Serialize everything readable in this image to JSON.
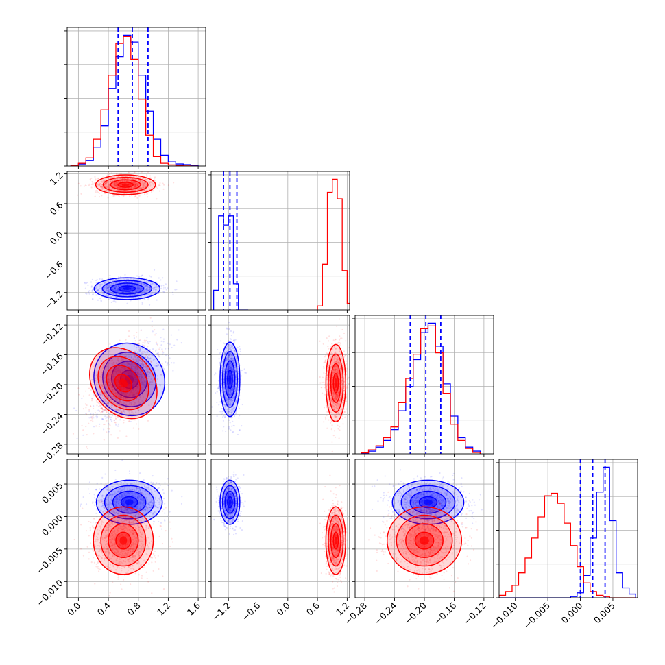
{
  "chart_data": {
    "type": "corner",
    "grid": true,
    "colors": {
      "red": "#ff0000",
      "blue": "#0000ff",
      "grid": "#b0b0b0"
    },
    "parameters": [
      {
        "lim": [
          -0.15,
          1.7
        ],
        "ticks": [
          0.0,
          0.4,
          0.8,
          1.2,
          1.6
        ],
        "tick_labels": [
          "0.0",
          "0.4",
          "0.8",
          "1.2",
          "1.6"
        ]
      },
      {
        "lim": [
          -1.55,
          1.25
        ],
        "ticks": [
          -1.2,
          -0.6,
          0.0,
          0.6,
          1.2
        ],
        "tick_labels": [
          "−1.2",
          "−0.6",
          "0.0",
          "0.6",
          "1.2"
        ]
      },
      {
        "lim": [
          -0.293,
          -0.107
        ],
        "ticks": [
          -0.28,
          -0.24,
          -0.2,
          -0.16,
          -0.12
        ],
        "tick_labels": [
          "−0.28",
          "−0.24",
          "−0.20",
          "−0.16",
          "−0.12"
        ]
      },
      {
        "lim": [
          -0.0125,
          0.0088
        ],
        "ticks": [
          -0.01,
          -0.005,
          0.0,
          0.005
        ],
        "tick_labels": [
          "−0.010",
          "−0.005",
          "0.000",
          "0.005"
        ]
      }
    ],
    "histograms": [
      {
        "param": 0,
        "blue": {
          "edges": [
            -0.1,
            0.0,
            0.1,
            0.2,
            0.3,
            0.4,
            0.5,
            0.6,
            0.7,
            0.8,
            0.9,
            1.0,
            1.1,
            1.2,
            1.3,
            1.4,
            1.5,
            1.6
          ],
          "counts": [
            0.005,
            0.015,
            0.04,
            0.14,
            0.3,
            0.58,
            0.82,
            0.98,
            0.93,
            0.68,
            0.41,
            0.2,
            0.08,
            0.03,
            0.015,
            0.01,
            0.003
          ]
        },
        "red": {
          "edges": [
            -0.1,
            0.0,
            0.1,
            0.2,
            0.3,
            0.4,
            0.5,
            0.6,
            0.7,
            0.8,
            0.9,
            1.0,
            1.1,
            1.2,
            1.3,
            1.4,
            1.5,
            1.6
          ],
          "counts": [
            0.005,
            0.02,
            0.06,
            0.2,
            0.42,
            0.68,
            0.92,
            0.97,
            0.8,
            0.5,
            0.23,
            0.07,
            0.02,
            0.008,
            0.003,
            0.001,
            0.0
          ]
        },
        "quantiles": [
          0.53,
          0.72,
          0.93
        ]
      },
      {
        "param": 1,
        "blue": {
          "edges": [
            -1.5,
            -1.4,
            -1.3,
            -1.2,
            -1.1,
            -1.0,
            -0.9,
            -0.8
          ],
          "counts": [
            0.15,
            0.72,
            0.65,
            0.72,
            0.2,
            0.0,
            0.0
          ]
        },
        "red": {
          "edges": [
            0.6,
            0.7,
            0.8,
            0.9,
            1.0,
            1.1,
            1.2,
            1.3
          ],
          "counts": [
            0.03,
            0.35,
            0.9,
            1.0,
            0.85,
            0.3,
            0.05
          ]
        },
        "quantiles": [
          -1.3,
          -1.17,
          -1.03
        ]
      },
      {
        "param": 2,
        "blue": {
          "edges": [
            -0.285,
            -0.275,
            -0.265,
            -0.255,
            -0.245,
            -0.235,
            -0.225,
            -0.215,
            -0.205,
            -0.195,
            -0.185,
            -0.175,
            -0.165,
            -0.155,
            -0.145,
            -0.135,
            -0.125
          ],
          "counts": [
            0.005,
            0.02,
            0.05,
            0.1,
            0.18,
            0.32,
            0.5,
            0.7,
            0.9,
            0.97,
            0.8,
            0.52,
            0.28,
            0.12,
            0.05,
            0.02
          ]
        },
        "red": {
          "edges": [
            -0.285,
            -0.275,
            -0.265,
            -0.255,
            -0.245,
            -0.235,
            -0.225,
            -0.215,
            -0.205,
            -0.195,
            -0.185,
            -0.175,
            -0.165,
            -0.155,
            -0.145,
            -0.135,
            -0.125
          ],
          "counts": [
            0.008,
            0.03,
            0.06,
            0.12,
            0.2,
            0.38,
            0.56,
            0.74,
            0.93,
            0.95,
            0.75,
            0.45,
            0.22,
            0.1,
            0.04,
            0.01
          ]
        },
        "quantiles": [
          -0.219,
          -0.198,
          -0.178
        ]
      },
      {
        "param": 3,
        "blue": {
          "edges": [
            -0.0125,
            -0.0115,
            -0.0105,
            -0.0095,
            -0.0085,
            -0.0075,
            -0.0065,
            -0.0055,
            -0.0045,
            -0.0035,
            -0.0025,
            -0.0015,
            -0.0005,
            0.0005,
            0.0015,
            0.0025,
            0.0035,
            0.0045,
            0.0055,
            0.0065,
            0.0075,
            0.0085
          ],
          "counts": [
            0,
            0,
            0,
            0,
            0,
            0,
            0,
            0,
            0,
            0,
            0,
            0.01,
            0.04,
            0.18,
            0.48,
            0.85,
            1.05,
            0.62,
            0.2,
            0.08,
            0.03
          ]
        },
        "red": {
          "edges": [
            -0.0125,
            -0.0115,
            -0.0105,
            -0.0095,
            -0.0085,
            -0.0075,
            -0.0065,
            -0.0055,
            -0.0045,
            -0.0035,
            -0.0025,
            -0.0015,
            -0.0005,
            0.0005,
            0.0015,
            0.0025,
            0.0035,
            0.0045,
            0.0055,
            0.0065,
            0.0075,
            0.0085
          ],
          "counts": [
            0.02,
            0.05,
            0.1,
            0.2,
            0.32,
            0.48,
            0.65,
            0.82,
            0.84,
            0.76,
            0.6,
            0.42,
            0.25,
            0.12,
            0.05,
            0.02,
            0.01,
            0.0,
            0.0,
            0.0,
            0.0
          ]
        },
        "quantiles": [
          0.0,
          0.0019,
          0.0038
        ]
      }
    ],
    "scatter_panels": [
      {
        "x": 0,
        "y": 1,
        "blue": {
          "center": [
            0.65,
            -1.12
          ],
          "std": [
            0.22,
            0.11
          ],
          "rho": 0.0
        },
        "red": {
          "center": [
            0.63,
            0.98
          ],
          "std": [
            0.2,
            0.1
          ],
          "rho": 0.0
        }
      },
      {
        "x": 0,
        "y": 2,
        "blue": {
          "center": [
            0.68,
            -0.193
          ],
          "std": [
            0.23,
            0.025
          ],
          "rho": 0.6
        },
        "red": {
          "center": [
            0.6,
            -0.198
          ],
          "std": [
            0.2,
            0.026
          ],
          "rho": 0.55
        }
      },
      {
        "x": 1,
        "y": 2,
        "blue": {
          "center": [
            -1.17,
            -0.193
          ],
          "std": [
            0.1,
            0.025
          ],
          "rho": 0.0
        },
        "red": {
          "center": [
            0.97,
            -0.198
          ],
          "std": [
            0.1,
            0.026
          ],
          "rho": 0.0
        }
      },
      {
        "x": 0,
        "y": 3,
        "blue": {
          "center": [
            0.68,
            0.0022
          ],
          "std": [
            0.22,
            0.0017
          ],
          "rho": 0.0
        },
        "red": {
          "center": [
            0.6,
            -0.0037
          ],
          "std": [
            0.2,
            0.0026
          ],
          "rho": 0.0
        }
      },
      {
        "x": 1,
        "y": 3,
        "blue": {
          "center": [
            -1.17,
            0.0022
          ],
          "std": [
            0.1,
            0.0017
          ],
          "rho": 0.0
        },
        "red": {
          "center": [
            0.97,
            -0.0037
          ],
          "std": [
            0.1,
            0.0026
          ],
          "rho": 0.0
        }
      },
      {
        "x": 2,
        "y": 3,
        "blue": {
          "center": [
            -0.195,
            0.0022
          ],
          "std": [
            0.024,
            0.0017
          ],
          "rho": 0.0
        },
        "red": {
          "center": [
            -0.2,
            -0.0037
          ],
          "std": [
            0.025,
            0.0026
          ],
          "rho": 0.0
        }
      }
    ]
  }
}
